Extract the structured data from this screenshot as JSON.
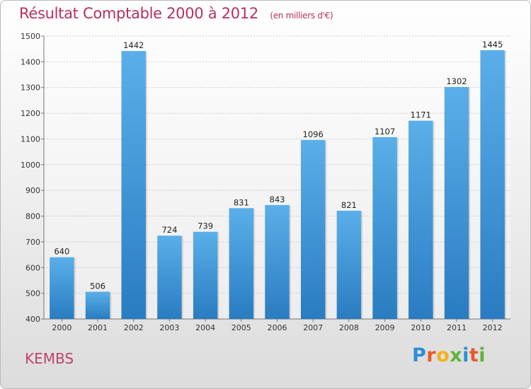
{
  "chart_data": {
    "type": "bar",
    "title": "Résultat Comptable 2000 à 2012",
    "subtitle": "(en milliers d'€)",
    "categories": [
      "2000",
      "2001",
      "2002",
      "2003",
      "2004",
      "2005",
      "2006",
      "2007",
      "2008",
      "2009",
      "2010",
      "2011",
      "2012"
    ],
    "values": [
      640,
      506,
      1442,
      724,
      739,
      831,
      843,
      1096,
      821,
      1107,
      1171,
      1302,
      1445
    ],
    "ylim": [
      400,
      1500
    ],
    "yticks": [
      400,
      500,
      600,
      700,
      800,
      900,
      1000,
      1100,
      1200,
      1300,
      1400,
      1500
    ],
    "grid": true,
    "xlabel": "",
    "ylabel": "",
    "colors": {
      "bar_light": "#5aafe9",
      "bar_dark": "#2a7cc1",
      "title": "#b8315c"
    }
  },
  "footer": {
    "commune": "KEMBS",
    "logo_letters": [
      "P",
      "r",
      "o",
      "x",
      "i",
      "t",
      "i"
    ],
    "logo_colors": [
      "#2b8fd6",
      "#e8592b",
      "#f2b21b",
      "#5fb437",
      "#2b8fd6",
      "#e8592b",
      "#5fb437"
    ]
  }
}
